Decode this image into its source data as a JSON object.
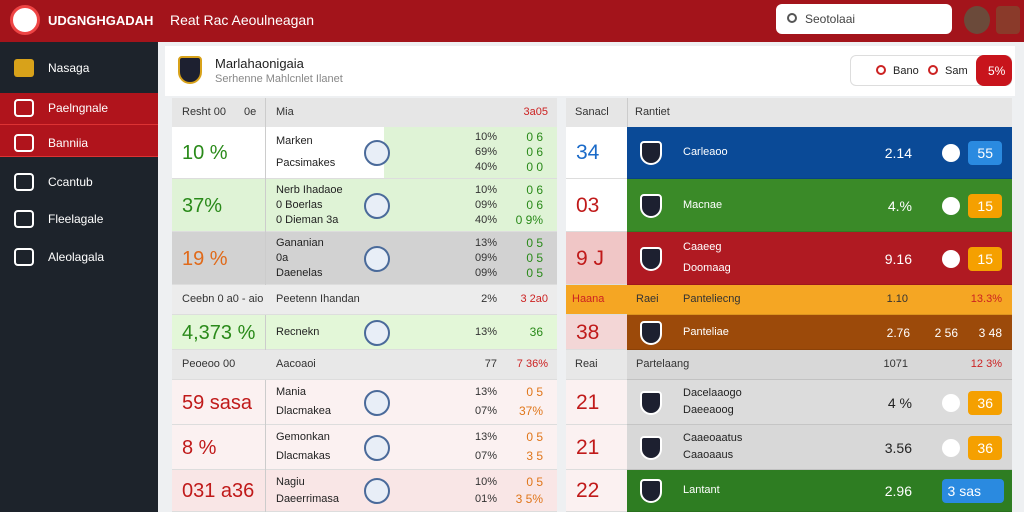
{
  "header": {
    "brand": "UDGNGHGADAH",
    "subtitle": "Reat Rac Aeoulneagan",
    "search": "Seotolaai"
  },
  "sidebar": [
    "Nasaga",
    "Paelngnale",
    "Banniia",
    "Ccantub",
    "Fleelagale",
    "Aleolagala"
  ],
  "panel": {
    "title": "Marlahaonigaia",
    "subtitle": "Serhenne Mahlcnlet Ilanet",
    "buttons": [
      "Bano",
      "Sam"
    ],
    "badge": "5%"
  },
  "left_table": {
    "headers": [
      "Resht 00",
      "0e",
      "Mia",
      "3a05"
    ],
    "rows": [
      {
        "main": "10 %",
        "lines": [
          "Marken",
          "Pacsimakes"
        ],
        "pcts": [
          "10%",
          "69%",
          "40%"
        ],
        "vals": [
          "0 6",
          "0 6",
          "0 0"
        ]
      },
      {
        "main": "37%",
        "lines": [
          "Nerb Ihadaoe",
          "0 Boerlas",
          "0 Dieman 3a"
        ],
        "pcts": [
          "10%",
          "09%",
          "40%"
        ],
        "vals": [
          "0 6",
          "0 6",
          "0 9%"
        ]
      },
      {
        "main": "19 %",
        "lines": [
          "Gananian",
          "0a",
          "Daenelas"
        ],
        "pcts": [
          "13%",
          "09%",
          "09%"
        ],
        "vals": [
          "0 5",
          "0 5",
          "0 5"
        ]
      },
      {
        "cells": [
          "Ceebn 0 a0 - aio",
          "Peetenn Ihandan",
          "2%",
          "3 2a0"
        ]
      },
      {
        "main": "4,373 %",
        "lines": [
          "Recnekn"
        ],
        "pcts": [
          "13%"
        ],
        "vals": [
          "36"
        ]
      },
      {
        "cells": [
          "Peoeoo 00",
          "Aacoaoi",
          "77",
          "7 36%"
        ]
      },
      {
        "main": "59 sasa",
        "lines": [
          "Mania",
          "Dlacmakea"
        ],
        "pcts": [
          "13%",
          "07%"
        ],
        "vals": [
          "0 5",
          "37%"
        ]
      },
      {
        "main": "8 %",
        "lines": [
          "Gemonkan",
          "Dlacmakas"
        ],
        "pcts": [
          "13%",
          "07%"
        ],
        "vals": [
          "0 5",
          "3 5"
        ]
      },
      {
        "main": "031 a36",
        "lines": [
          "Nagiu",
          "Daeerrimasa"
        ],
        "pcts": [
          "10%",
          "01%"
        ],
        "vals": [
          "0 5",
          "3 5%"
        ]
      }
    ]
  },
  "right_table": {
    "headers": [
      "Sanacl",
      "Rantiet"
    ],
    "rows": [
      {
        "num": "34",
        "lines": [
          "Carleaoo"
        ],
        "stat": "2.14",
        "badge": "55"
      },
      {
        "num": "03",
        "lines": [
          "Macnae"
        ],
        "stat": "4.%",
        "badge": "15"
      },
      {
        "num": "9 J",
        "lines": [
          "Caaeeg",
          "Doomaag"
        ],
        "stat": "9.16",
        "badge": "15"
      },
      {
        "cells": [
          "Haana",
          "Raei",
          "Panteliecng",
          "1.10",
          "13.3%"
        ]
      },
      {
        "num": "38",
        "lines": [
          "Panteliae"
        ],
        "stats": [
          "2.76",
          "2 56",
          "3 48"
        ]
      },
      {
        "cells": [
          "Reai",
          "Partelaang",
          "1071",
          "12 3%"
        ]
      },
      {
        "num": "21",
        "lines": [
          "Dacelaaogo",
          "Daeeaoog"
        ],
        "stat": "4 %",
        "badge": "36"
      },
      {
        "num": "21",
        "lines": [
          "Caaeoaatus",
          "Caaoaaus"
        ],
        "stat": "3.56",
        "badge": "36"
      },
      {
        "num": "22",
        "lines": [
          "Lantant"
        ],
        "stat": "2.96",
        "badge": "3 sas"
      }
    ]
  }
}
